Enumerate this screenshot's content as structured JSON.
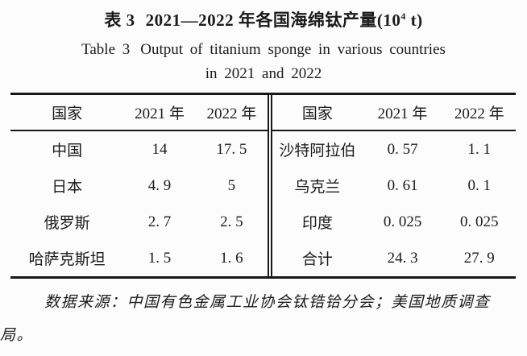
{
  "page": {
    "background": "#fcfcfc",
    "text_color": "#1b1b1b",
    "rule_color": "#171717"
  },
  "title": {
    "cn_label": "表 3",
    "cn_main": "2021—2022 年各国海绵钛产量(10",
    "cn_sup": "4",
    "cn_suffix": " t)",
    "en_label": "Table 3",
    "en_main": "Output of titanium sponge in various countries",
    "en_line2": "in 2021 and 2022"
  },
  "table": {
    "left": {
      "headers": [
        "国家",
        "2021 年",
        "2022 年"
      ],
      "rows": [
        [
          "中国",
          "14",
          "17. 5"
        ],
        [
          "日本",
          "4. 9",
          "5"
        ],
        [
          "俄罗斯",
          "2. 7",
          "2. 5"
        ],
        [
          "哈萨克斯坦",
          "1. 5",
          "1. 6"
        ]
      ]
    },
    "right": {
      "headers": [
        "国家",
        "2021 年",
        "2022 年"
      ],
      "rows": [
        [
          "沙特阿拉伯",
          "0. 57",
          "1. 1"
        ],
        [
          "乌克兰",
          "0. 61",
          "0. 1"
        ],
        [
          "印度",
          "0. 025",
          "0. 025"
        ],
        [
          "合计",
          "24. 3",
          "27. 9"
        ]
      ]
    }
  },
  "footnote": "数据来源：中国有色金属工业协会钛锆铪分会；美国地质调查局。"
}
